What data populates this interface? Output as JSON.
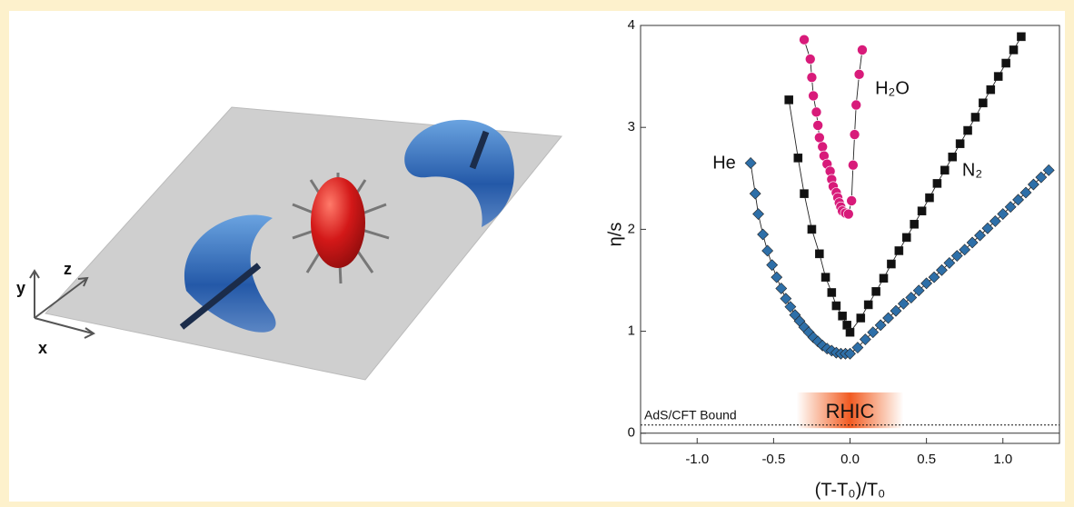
{
  "illustration": {
    "axis_labels": [
      "y",
      "z",
      "x"
    ]
  },
  "chart_data": {
    "type": "scatter",
    "x_label": "(T-T₀)/T₀",
    "y_label": "η/s",
    "xlim": [
      -1.37,
      1.37
    ],
    "ylim": [
      -0.1,
      4
    ],
    "xticks": [
      {
        "value": -1,
        "label": "-1.0"
      },
      -0.5,
      {
        "value": 0,
        "label": "0.0"
      },
      0.5,
      {
        "value": 1,
        "label": "1.0"
      }
    ],
    "yticks": [
      0,
      1,
      2,
      3,
      4
    ],
    "bound": {
      "label": "AdS/CFT Bound",
      "value": 0.08
    },
    "band_label": "RHIC",
    "series": [
      {
        "name": "He",
        "color": "#2e6fa8",
        "marker": "diamond",
        "x": [
          -0.65,
          -0.62,
          -0.6,
          -0.57,
          -0.54,
          -0.51,
          -0.48,
          -0.45,
          -0.42,
          -0.39,
          -0.36,
          -0.33,
          -0.3,
          -0.27,
          -0.24,
          -0.21,
          -0.18,
          -0.15,
          -0.12,
          -0.09,
          -0.06,
          -0.03,
          0,
          0.05,
          0.1,
          0.15,
          0.2,
          0.25,
          0.3,
          0.35,
          0.4,
          0.45,
          0.5,
          0.55,
          0.6,
          0.65,
          0.7,
          0.75,
          0.8,
          0.85,
          0.9,
          0.95,
          1,
          1.05,
          1.1,
          1.15,
          1.2,
          1.25,
          1.3
        ],
        "values": [
          2.65,
          2.35,
          2.15,
          1.95,
          1.79,
          1.65,
          1.53,
          1.42,
          1.32,
          1.24,
          1.16,
          1.1,
          1.04,
          0.99,
          0.94,
          0.9,
          0.86,
          0.83,
          0.81,
          0.79,
          0.78,
          0.78,
          0.78,
          0.84,
          0.92,
          0.99,
          1.06,
          1.13,
          1.2,
          1.27,
          1.33,
          1.4,
          1.47,
          1.53,
          1.6,
          1.67,
          1.74,
          1.8,
          1.87,
          1.94,
          2.01,
          2.08,
          2.15,
          2.22,
          2.29,
          2.36,
          2.44,
          2.51,
          2.58
        ]
      },
      {
        "name": "N₂",
        "color": "#111111",
        "marker": "square",
        "x": [
          -0.4,
          -0.34,
          -0.3,
          -0.25,
          -0.2,
          -0.16,
          -0.12,
          -0.09,
          -0.05,
          -0.02,
          0,
          0.07,
          0.12,
          0.17,
          0.22,
          0.27,
          0.32,
          0.37,
          0.42,
          0.47,
          0.52,
          0.57,
          0.62,
          0.67,
          0.72,
          0.77,
          0.82,
          0.87,
          0.92,
          0.97,
          1.02,
          1.07,
          1.12
        ],
        "values": [
          3.27,
          2.7,
          2.35,
          2.0,
          1.76,
          1.53,
          1.38,
          1.25,
          1.15,
          1.06,
          0.99,
          1.13,
          1.26,
          1.39,
          1.52,
          1.66,
          1.79,
          1.92,
          2.05,
          2.18,
          2.31,
          2.45,
          2.58,
          2.71,
          2.84,
          2.97,
          3.1,
          3.24,
          3.37,
          3.5,
          3.63,
          3.76,
          3.89
        ]
      },
      {
        "name": "H₂O",
        "color": "#d81b7a",
        "marker": "circle",
        "x": [
          -0.3,
          -0.26,
          -0.25,
          -0.24,
          -0.22,
          -0.21,
          -0.2,
          -0.18,
          -0.17,
          -0.15,
          -0.13,
          -0.12,
          -0.11,
          -0.09,
          -0.08,
          -0.07,
          -0.06,
          -0.05,
          -0.03,
          -0.01,
          0.01,
          0.02,
          0.03,
          0.04,
          0.06,
          0.08
        ],
        "values": [
          3.86,
          3.67,
          3.49,
          3.31,
          3.15,
          3.02,
          2.9,
          2.81,
          2.72,
          2.64,
          2.57,
          2.49,
          2.42,
          2.36,
          2.31,
          2.26,
          2.22,
          2.18,
          2.16,
          2.15,
          2.28,
          2.63,
          2.93,
          3.22,
          3.52,
          3.76
        ]
      }
    ]
  }
}
